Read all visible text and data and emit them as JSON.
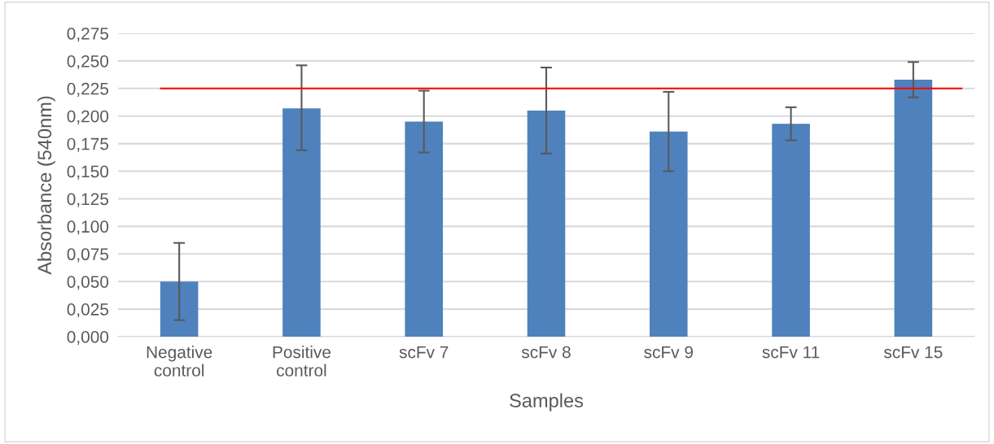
{
  "chart_data": {
    "type": "bar",
    "xlabel": "Samples",
    "ylabel": "Absorbance (540nm)",
    "categories": [
      "Negative\ncontrol",
      "Positive\ncontrol",
      "scFv 7",
      "scFv 8",
      "scFv 9",
      "scFv 11",
      "scFv 15"
    ],
    "values": [
      0.05,
      0.207,
      0.195,
      0.205,
      0.186,
      0.193,
      0.233
    ],
    "errors": [
      [
        0.015,
        0.085
      ],
      [
        0.169,
        0.246
      ],
      [
        0.167,
        0.223
      ],
      [
        0.166,
        0.244
      ],
      [
        0.15,
        0.222
      ],
      [
        0.178,
        0.208
      ],
      [
        0.217,
        0.249
      ]
    ],
    "color": "#4f81bd",
    "ylim": [
      0,
      0.275
    ],
    "yticks": [
      {
        "value": 0,
        "label": "0,000"
      },
      {
        "value": 0.025,
        "label": "0,025"
      },
      {
        "value": 0.05,
        "label": "0,050"
      },
      {
        "value": 0.075,
        "label": "0,075"
      },
      {
        "value": 0.1,
        "label": "0,100"
      },
      {
        "value": 0.125,
        "label": "0,125"
      },
      {
        "value": 0.15,
        "label": "0,150"
      },
      {
        "value": 0.175,
        "label": "0,175"
      },
      {
        "value": 0.2,
        "label": "0,200"
      },
      {
        "value": 0.225,
        "label": "0,225"
      },
      {
        "value": 0.25,
        "label": "0,250"
      },
      {
        "value": 0.275,
        "label": "0,275"
      }
    ],
    "ref_lines": [
      {
        "axis": "y",
        "value": 0.225,
        "label": null,
        "color": "#ff0000"
      }
    ],
    "grid": "y"
  }
}
